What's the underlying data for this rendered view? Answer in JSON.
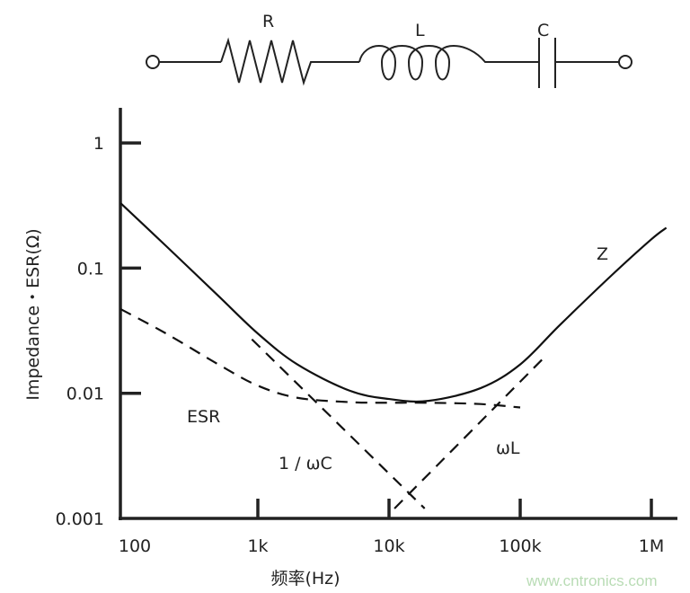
{
  "circuit": {
    "labels": {
      "r": "R",
      "l": "L",
      "c": "C"
    }
  },
  "watermark": "www.cntronics.com",
  "chart_data": {
    "type": "line",
    "title": "",
    "xlabel": "频率(Hz)",
    "ylabel": "Impedance・ESR(Ω)",
    "xscale": "log",
    "yscale": "log",
    "xlim": [
      90,
      1300000
    ],
    "ylim": [
      0.001,
      1.5
    ],
    "grid": false,
    "x_ticks": [
      {
        "value": 100,
        "label": "100"
      },
      {
        "value": 1000,
        "label": "1k"
      },
      {
        "value": 10000,
        "label": "10k"
      },
      {
        "value": 100000,
        "label": "100k"
      },
      {
        "value": 1000000,
        "label": "1M"
      }
    ],
    "y_ticks": [
      {
        "value": 1,
        "label": "1"
      },
      {
        "value": 0.1,
        "label": "0.1"
      },
      {
        "value": 0.01,
        "label": "0.01"
      },
      {
        "value": 0.001,
        "label": "0.001"
      }
    ],
    "series": [
      {
        "name": "Z",
        "style": "solid",
        "color": "#111111",
        "points": [
          [
            90,
            0.33
          ],
          [
            200,
            0.15
          ],
          [
            500,
            0.06
          ],
          [
            1000,
            0.03
          ],
          [
            2000,
            0.017
          ],
          [
            5000,
            0.0105
          ],
          [
            10000,
            0.009
          ],
          [
            20000,
            0.0087
          ],
          [
            50000,
            0.011
          ],
          [
            100000,
            0.017
          ],
          [
            200000,
            0.035
          ],
          [
            500000,
            0.088
          ],
          [
            1000000,
            0.17
          ],
          [
            1300000,
            0.21
          ]
        ]
      },
      {
        "name": "ESR",
        "style": "dashed",
        "color": "#111111",
        "points": [
          [
            90,
            0.047
          ],
          [
            200,
            0.03
          ],
          [
            500,
            0.017
          ],
          [
            1000,
            0.0115
          ],
          [
            2000,
            0.0092
          ],
          [
            5000,
            0.0085
          ],
          [
            10000,
            0.0084
          ],
          [
            20000,
            0.0084
          ],
          [
            50000,
            0.0082
          ],
          [
            100000,
            0.0077
          ]
        ]
      },
      {
        "name": "1 / ωC",
        "style": "dashed",
        "color": "#111111",
        "points": [
          [
            900,
            0.027
          ],
          [
            18700,
            0.0012
          ]
        ]
      },
      {
        "name": "ωL",
        "style": "dashed",
        "color": "#111111",
        "points": [
          [
            11000,
            0.0012
          ],
          [
            150000,
            0.019
          ]
        ]
      }
    ]
  }
}
